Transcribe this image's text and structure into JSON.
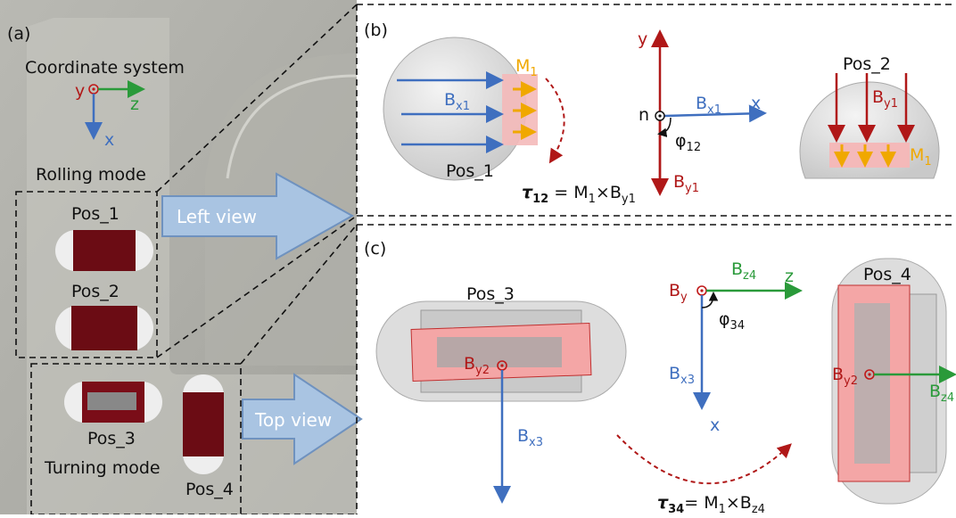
{
  "panel_a": {
    "label": "(a)",
    "coordinate_title": "Coordinate system",
    "axis_y": "y",
    "axis_z": "z",
    "axis_x": "x",
    "rolling_mode": "Rolling mode",
    "pos_1": "Pos_1",
    "pos_2": "Pos_2",
    "left_view": "Left view",
    "pos_3": "Pos_3",
    "pos_4": "Pos_4",
    "turning_mode": "Turning mode",
    "top_view": "Top view"
  },
  "panel_b": {
    "label": "(b)",
    "magnet": {
      "base": "M",
      "sub": "1"
    },
    "field_bx1": {
      "base": "B",
      "sub": "x1"
    },
    "pos_1": "Pos_1",
    "torque": {
      "symbol": "τ",
      "sub": "12",
      "rest": " = M",
      "rest_sub": "1",
      "cross": "×B",
      "cross_sub": "y1"
    },
    "axis_y": "y",
    "axis_n": "n",
    "axis_bx1": {
      "base": "B",
      "sub": "x1"
    },
    "axis_x": "x",
    "angle": {
      "base": "φ",
      "sub": "12"
    },
    "axis_by1": {
      "base": "B",
      "sub": "y1"
    },
    "pos_2": "Pos_2",
    "field_by1": {
      "base": "B",
      "sub": "y1"
    },
    "magnet_2": {
      "base": "M",
      "sub": "1"
    }
  },
  "panel_c": {
    "label": "(c)",
    "pos_3": "Pos_3",
    "by2": {
      "base": "B",
      "sub": "y2"
    },
    "bx3": {
      "base": "B",
      "sub": "x3"
    },
    "axis_by": {
      "base": "B",
      "sub": "y"
    },
    "axis_bz4": {
      "base": "B",
      "sub": "z4"
    },
    "axis_z": "z",
    "angle": {
      "base": "φ",
      "sub": "34"
    },
    "axis_bx3": {
      "base": "B",
      "sub": "x3"
    },
    "axis_x": "x",
    "pos_4": "Pos_4",
    "by2_pos4": {
      "base": "B",
      "sub": "y2"
    },
    "bz4_pos4": {
      "base": "B",
      "sub": "z4"
    },
    "torque": {
      "symbol": "τ",
      "sub": "34",
      "rest": "= M",
      "rest_sub": "1",
      "cross": "×B",
      "cross_sub": "z4"
    }
  }
}
